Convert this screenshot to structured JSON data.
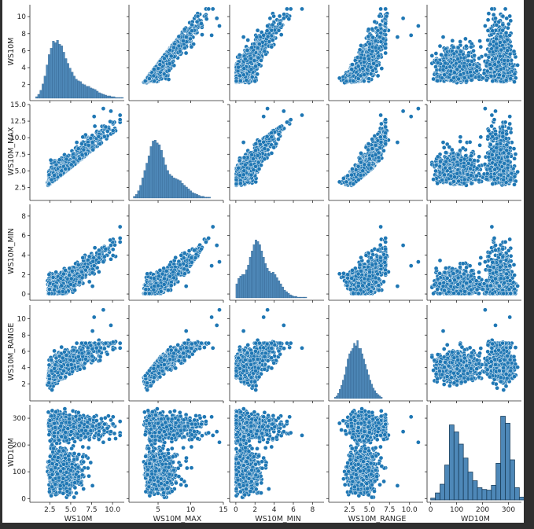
{
  "chart_data": {
    "type": "scatter",
    "title": "",
    "subtype": "pairplot",
    "variables": [
      "WS10M",
      "WS10M_MAX",
      "WS10M_MIN",
      "WS10M_RANGE",
      "WD10M"
    ],
    "diagonal": "histogram",
    "offdiagonal": "scatter",
    "color": "#1f77b4",
    "axes": {
      "WS10M": {
        "range": [
          0.4,
          11.4
        ],
        "ticks": [
          2.5,
          5.0,
          7.5,
          10.0
        ],
        "tick_labels": [
          "2.5",
          "5.0",
          "7.5",
          "10.0"
        ],
        "y_ticks": [
          2,
          4,
          6,
          8,
          10
        ],
        "y_tick_labels": [
          "2",
          "4",
          "6",
          "8",
          "10"
        ]
      },
      "WS10M_MAX": {
        "range": [
          0.9,
          15.0
        ],
        "ticks": [
          5,
          10,
          15
        ],
        "tick_labels": [
          "5",
          "10",
          "15"
        ],
        "y_ticks": [
          2.5,
          5.0,
          7.5,
          10.0,
          12.5,
          15.0
        ],
        "y_tick_labels": [
          "2.5",
          "5.0",
          "7.5",
          "10.0",
          "12.5",
          "15.0"
        ]
      },
      "WS10M_MIN": {
        "range": [
          -0.4,
          9.2
        ],
        "ticks": [
          0,
          2,
          4,
          6,
          8
        ],
        "tick_labels": [
          "0",
          "2",
          "4",
          "6",
          "8"
        ],
        "y_ticks": [
          0,
          2,
          4,
          6,
          8
        ],
        "y_tick_labels": [
          "0",
          "2",
          "4",
          "6",
          "8"
        ]
      },
      "WS10M_RANGE": {
        "range": [
          0.2,
          11.7
        ],
        "ticks": [
          2.5,
          5.0,
          7.5,
          10.0
        ],
        "tick_labels": [
          "2.5",
          "5.0",
          "7.5",
          "10.0"
        ],
        "y_ticks": [
          2,
          4,
          6,
          8,
          10
        ],
        "y_tick_labels": [
          "2",
          "4",
          "6",
          "8",
          "10"
        ]
      },
      "WD10M": {
        "range": [
          -5,
          350
        ],
        "ticks": [
          0,
          100,
          200,
          300
        ],
        "tick_labels": [
          "0",
          "100",
          "200",
          "300"
        ],
        "y_ticks": [
          0,
          100,
          200,
          300
        ],
        "y_tick_labels": [
          "0",
          "100",
          "200",
          "300"
        ]
      }
    },
    "histograms": {
      "WS10M": {
        "bin_start": 0.8,
        "bin_width": 0.25,
        "counts": [
          2,
          5,
          10,
          18,
          28,
          42,
          55,
          63,
          72,
          70,
          73,
          68,
          66,
          58,
          50,
          44,
          38,
          33,
          28,
          24,
          22,
          21,
          18,
          17,
          15,
          15,
          13,
          12,
          11,
          9,
          7,
          6,
          5,
          4,
          3,
          3,
          2,
          2,
          1,
          1,
          1,
          1
        ]
      },
      "WS10M_MAX": {
        "bin_start": 1.2,
        "bin_width": 0.32,
        "counts": [
          2,
          4,
          8,
          14,
          22,
          30,
          38,
          46,
          56,
          62,
          63,
          60,
          58,
          52,
          44,
          36,
          30,
          26,
          24,
          22,
          21,
          20,
          19,
          16,
          14,
          12,
          10,
          8,
          6,
          5,
          4,
          3,
          2,
          2,
          1,
          1,
          1
        ]
      },
      "WS10M_MIN": {
        "bin_start": 0.0,
        "bin_width": 0.2,
        "counts": [
          18,
          25,
          28,
          30,
          30,
          36,
          42,
          52,
          60,
          68,
          74,
          72,
          68,
          60,
          52,
          44,
          38,
          34,
          32,
          33,
          30,
          26,
          22,
          18,
          14,
          10,
          8,
          6,
          4,
          3,
          2,
          2,
          1,
          1,
          1,
          1,
          1
        ]
      },
      "WS10M_RANGE": {
        "bin_start": 0.6,
        "bin_width": 0.2,
        "counts": [
          1,
          2,
          4,
          7,
          10,
          14,
          18,
          24,
          30,
          34,
          36,
          38,
          42,
          40,
          44,
          38,
          38,
          34,
          30,
          26,
          22,
          18,
          14,
          11,
          8,
          6,
          4,
          3,
          2,
          1
        ]
      },
      "WD10M": {
        "bin_start": 0,
        "bin_width": 18,
        "counts": [
          5,
          20,
          45,
          100,
          215,
          195,
          160,
          120,
          80,
          55,
          35,
          30,
          28,
          42,
          105,
          240,
          220,
          115,
          35,
          8
        ]
      }
    }
  },
  "figure": {
    "background": "#ffffff",
    "frame_background": "#2f2f2f",
    "point_color": "#1f77b4",
    "point_edge": "#ffffff",
    "hist_fill": "#3b7bb0",
    "hist_edge": "#1b3f5c"
  }
}
